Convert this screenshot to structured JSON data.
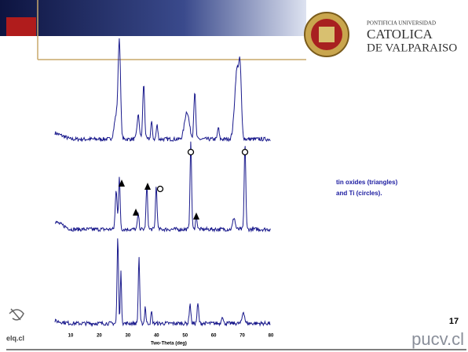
{
  "header": {
    "logo": {
      "line1": "PONTIFICIA UNIVERSIDAD",
      "line2": "CATOLICA",
      "line3": "DE VALPARAISO"
    }
  },
  "figure": {
    "axis": {
      "ticks": [
        10,
        20,
        30,
        40,
        50,
        60,
        70,
        80
      ],
      "label": "Two-Theta (deg)"
    }
  },
  "caption": {
    "lines": [
      "tin oxides (triangles)",
      "and Ti (circles)."
    ]
  },
  "footer": {
    "page": "17",
    "left": "elq.cl",
    "right": "pucv.cl"
  }
}
